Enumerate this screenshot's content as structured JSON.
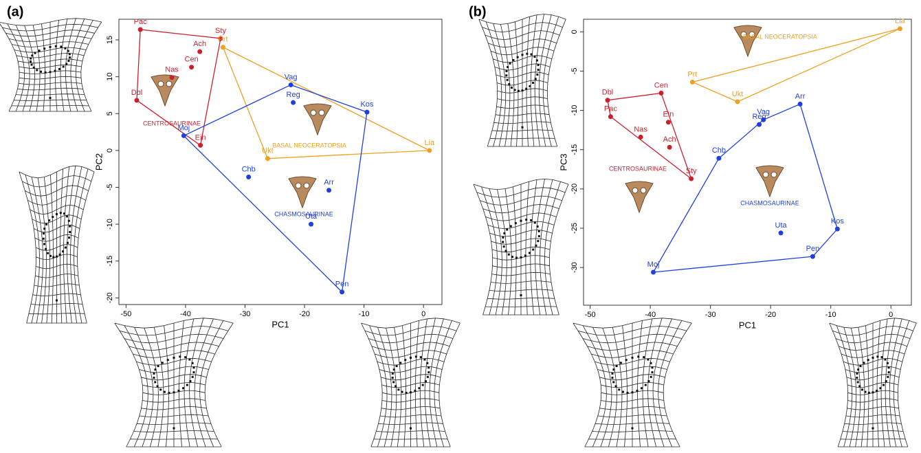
{
  "chart_data": [
    {
      "type": "scatter",
      "panel": "(a)",
      "x_label": "PC1",
      "y_label": "PC2",
      "xlim": [
        -51.2,
        3.1
      ],
      "ylim": [
        -20.9,
        17.8
      ],
      "xticks": [
        -50,
        -40,
        -30,
        -20,
        -10,
        0
      ],
      "yticks": [
        -20,
        -15,
        -10,
        -5,
        0,
        5,
        10,
        15
      ],
      "hull": true,
      "series": [
        {
          "name": "CENTROSAURINAE",
          "color": "#cc1f2e",
          "labels": [
            "Pac",
            "Sty",
            "Ach",
            "Cen",
            "Nas",
            "Dbl",
            "Ein"
          ],
          "x": [
            -47.6,
            -34.1,
            -37.6,
            -39.0,
            -42.3,
            -48.2,
            -37.5
          ],
          "y": [
            16.4,
            15.2,
            13.4,
            11.3,
            9.9,
            6.8,
            0.7
          ]
        },
        {
          "name": "BASAL NEOCERATOPSIA",
          "color": "#f0a020",
          "labels": [
            "Prt",
            "Ukt",
            "Lia"
          ],
          "x": [
            -33.7,
            -26.2,
            1.0
          ],
          "y": [
            14.0,
            -1.1,
            0.0
          ]
        },
        {
          "name": "CHASMOSAURINAE",
          "color": "#1f3fe0",
          "labels": [
            "Vag",
            "Reg",
            "Kos",
            "Moj",
            "Chb",
            "Arr",
            "Uta",
            "Pen"
          ],
          "x": [
            -22.3,
            -21.9,
            -9.5,
            -40.3,
            -29.4,
            -15.9,
            -18.9,
            -13.7
          ],
          "y": [
            8.9,
            6.5,
            5.2,
            2.0,
            -3.6,
            -5.4,
            -10.0,
            -19.2
          ]
        }
      ]
    },
    {
      "type": "scatter",
      "panel": "(b)",
      "x_label": "PC1",
      "y_label": "PC3",
      "xlim": [
        -51.1,
        3.4
      ],
      "ylim": [
        -34.8,
        1.6
      ],
      "xticks": [
        -50,
        -40,
        -30,
        -20,
        -10,
        0
      ],
      "yticks": [
        -30,
        -25,
        -20,
        -15,
        -10,
        -5,
        0
      ],
      "hull": true,
      "series": [
        {
          "name": "CENTROSAURINAE",
          "color": "#cc1f2e",
          "labels": [
            "Dbl",
            "Pac",
            "Cen",
            "Ein",
            "Nas",
            "Ach",
            "Sty"
          ],
          "x": [
            -47.1,
            -46.6,
            -38.2,
            -37.0,
            -41.6,
            -36.8,
            -33.2
          ],
          "y": [
            -8.7,
            -10.8,
            -7.8,
            -11.5,
            -13.4,
            -14.7,
            -18.7
          ]
        },
        {
          "name": "BASAL NEOCERATOPSIA",
          "color": "#f0a020",
          "labels": [
            "Lia",
            "Prt",
            "Ukt"
          ],
          "x": [
            1.5,
            -33.0,
            -25.5
          ],
          "y": [
            0.4,
            -6.4,
            -8.9
          ]
        },
        {
          "name": "CHASMOSAURINAE",
          "color": "#1f3fe0",
          "labels": [
            "Arr",
            "Vag",
            "Reg",
            "Chb",
            "Kos",
            "Uta",
            "Pen",
            "Moj"
          ],
          "x": [
            -15.1,
            -21.2,
            -21.9,
            -28.6,
            -8.9,
            -18.3,
            -13.0,
            -39.5
          ],
          "y": [
            -9.2,
            -11.2,
            -11.8,
            -16.1,
            -25.1,
            -25.6,
            -28.6,
            -30.6
          ]
        }
      ]
    }
  ]
}
